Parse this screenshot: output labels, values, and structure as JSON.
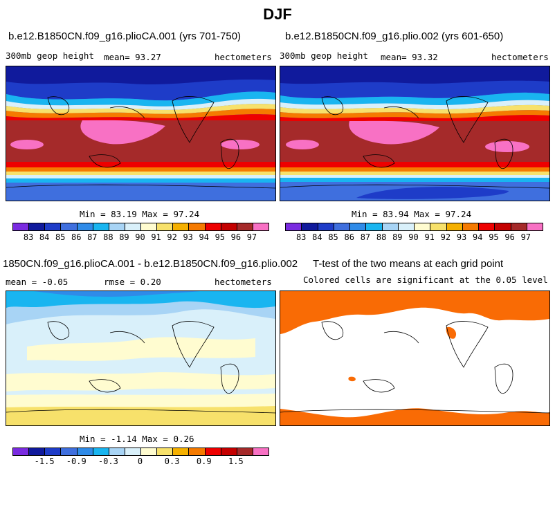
{
  "figure": {
    "title": "DJF"
  },
  "panels": [
    {
      "title": "b.e12.B1850CN.f09_g16.plioCA.001 (yrs 701-750)",
      "left_label": "300mb geop height",
      "center_label": "mean=  93.27",
      "right_label": "hectometers",
      "stats": "Min =  83.19 Max =  97.24"
    },
    {
      "title": "b.e12.B1850CN.f09_g16.plio.002 (yrs 601-650)",
      "left_label": "300mb geop height",
      "center_label": "mean=  93.32",
      "right_label": "hectometers",
      "stats": "Min =  83.94 Max =  97.24"
    },
    {
      "title": "1850CN.f09_g16.plioCA.001 - b.e12.B1850CN.f09_g16.plio.002",
      "left_label": "mean =  -0.05",
      "center_label": "rmse =   0.20",
      "right_label": "hectometers",
      "stats": "Min =  -1.14 Max =   0.26"
    },
    {
      "title": "T-test of the two means at each grid point",
      "left_label": "Colored cells are significant at the 0.05 level",
      "center_label": "",
      "right_label": "",
      "stats": ""
    }
  ],
  "chart_data": [
    {
      "type": "heatmap",
      "title": "b.e12.B1850CN.f09_g16.plioCA.001 (yrs 701-750)",
      "variable": "300mb geop height",
      "units": "hectometers",
      "mean": 93.27,
      "min": 83.19,
      "max": 97.24,
      "colorbar_levels": [
        83,
        84,
        85,
        86,
        87,
        88,
        89,
        90,
        91,
        92,
        93,
        94,
        95,
        96,
        97
      ],
      "colorbar_colors": [
        "#7a2be0",
        "#101a9c",
        "#1e3cc8",
        "#3f6fde",
        "#2f8be8",
        "#19b5f0",
        "#a8d4f5",
        "#d9f0fa",
        "#fffcd0",
        "#f7e16b",
        "#f5b000",
        "#f57a00",
        "#ee0000",
        "#c40000",
        "#a52a2a",
        "#f871c4"
      ],
      "grid": false
    },
    {
      "type": "heatmap",
      "title": "b.e12.B1850CN.f09_g16.plio.002 (yrs 601-650)",
      "variable": "300mb geop height",
      "units": "hectometers",
      "mean": 93.32,
      "min": 83.94,
      "max": 97.24,
      "colorbar_levels": [
        83,
        84,
        85,
        86,
        87,
        88,
        89,
        90,
        91,
        92,
        93,
        94,
        95,
        96,
        97
      ],
      "colorbar_colors": [
        "#7a2be0",
        "#101a9c",
        "#1e3cc8",
        "#3f6fde",
        "#2f8be8",
        "#19b5f0",
        "#a8d4f5",
        "#d9f0fa",
        "#fffcd0",
        "#f7e16b",
        "#f5b000",
        "#f57a00",
        "#ee0000",
        "#c40000",
        "#a52a2a",
        "#f871c4"
      ],
      "grid": false
    },
    {
      "type": "heatmap",
      "title": "1850CN.f09_g16.plioCA.001 - b.e12.B1850CN.f09_g16.plio.002",
      "units": "hectometers",
      "mean": -0.05,
      "rmse": 0.2,
      "min": -1.14,
      "max": 0.26,
      "colorbar_labels": [
        "-1.5",
        "-0.9",
        "-0.3",
        "0",
        "0.3",
        "0.9",
        "1.5"
      ],
      "colorbar_colors": [
        "#7a2be0",
        "#101a9c",
        "#1e3cc8",
        "#3f6fde",
        "#2f8be8",
        "#19b5f0",
        "#a8d4f5",
        "#d9f0fa",
        "#fffcd0",
        "#f7e16b",
        "#f5b000",
        "#f57a00",
        "#ee0000",
        "#c40000",
        "#a52a2a",
        "#f871c4"
      ],
      "grid": false
    },
    {
      "type": "heatmap",
      "title": "T-test of the two means at each grid point",
      "note": "Colored cells are significant at the 0.05 level",
      "significant_color": "#f96b05",
      "grid": false
    }
  ]
}
